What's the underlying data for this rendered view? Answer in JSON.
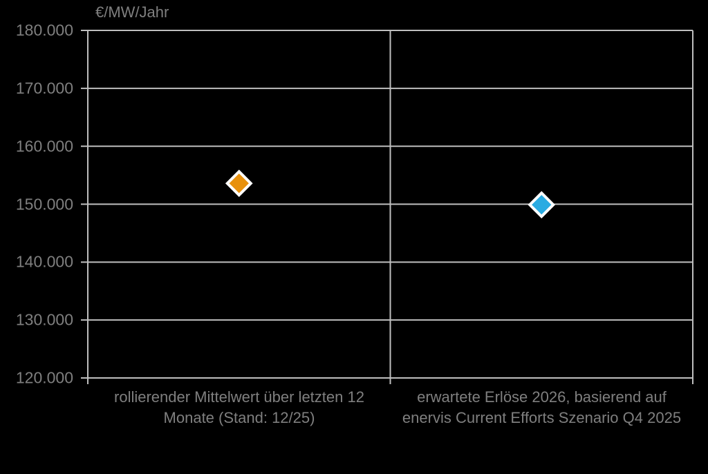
{
  "chart_data": {
    "type": "scatter",
    "title": "",
    "ylabel": "€/MW/Jahr",
    "xlabel": "",
    "categories": [
      "rollierender Mittelwert über letzten 12 Monate (Stand: 12/25)",
      "erwartete Erlöse 2026, basierend auf enervis Current Efforts Szenario Q4 2025"
    ],
    "points": [
      {
        "category_index": 0,
        "value": 153600,
        "color": "#E8910D",
        "marker": "diamond"
      },
      {
        "category_index": 1,
        "value": 149900,
        "color": "#29ABE2",
        "marker": "diamond"
      }
    ],
    "ylim": [
      120000,
      180000
    ],
    "ytick_step": 10000,
    "ytick_labels": [
      "180.000",
      "170.000",
      "160.000",
      "150.000",
      "140.000",
      "130.000",
      "120.000"
    ],
    "grid": true,
    "legend": "none"
  },
  "colors": {
    "background": "#000000",
    "grid": "#BFBFBF",
    "text": "#7F7F7F",
    "marker_border": "#FFFFFF"
  }
}
